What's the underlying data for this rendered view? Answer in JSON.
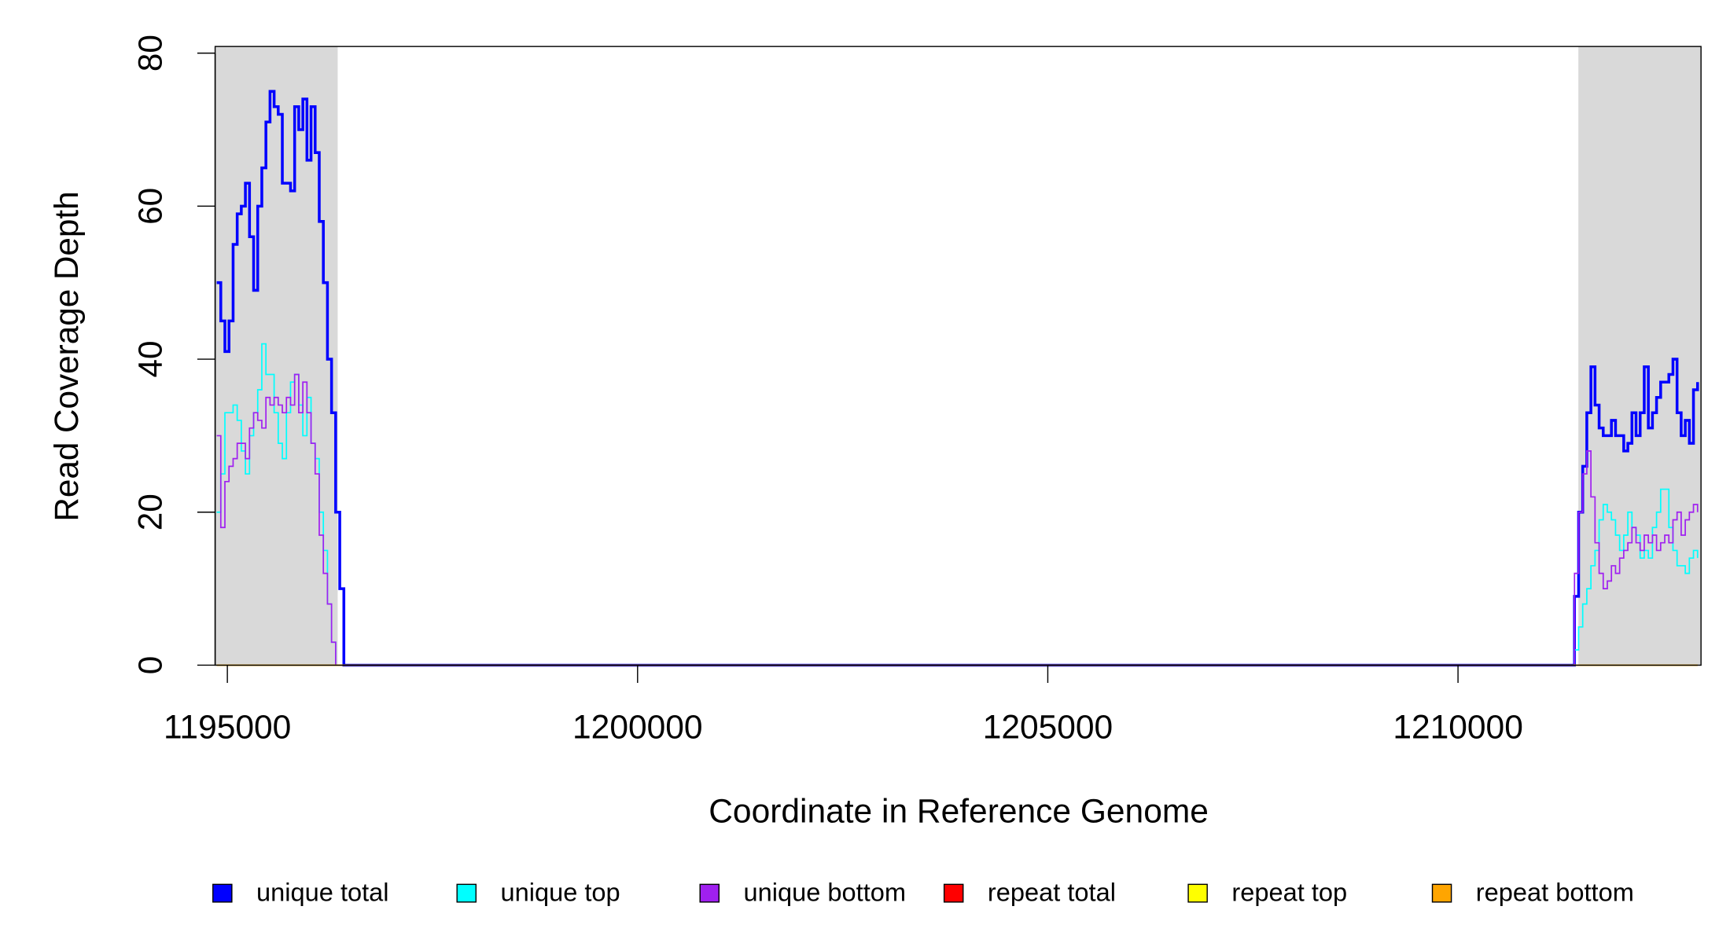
{
  "chart_data": {
    "type": "step-line",
    "xlabel": "Coordinate in Reference Genome",
    "ylabel": "Read Coverage Depth",
    "xlim": [
      1194851,
      1212962
    ],
    "ylim": [
      0,
      80.87
    ],
    "xticks": [
      1195000,
      1200000,
      1205000,
      1210000
    ],
    "yticks": [
      0,
      20,
      40,
      60,
      80
    ],
    "shaded_regions": [
      [
        1194851,
        1196345
      ],
      [
        1211467,
        1212962
      ]
    ],
    "shade_color": "#d9d9d9",
    "x": [
      1194870,
      1194920,
      1194970,
      1195020,
      1195070,
      1195120,
      1195170,
      1195220,
      1195270,
      1195320,
      1195370,
      1195420,
      1195470,
      1195520,
      1195570,
      1195620,
      1195670,
      1195720,
      1195770,
      1195820,
      1195870,
      1195920,
      1195970,
      1196020,
      1196070,
      1196120,
      1196170,
      1196220,
      1196270,
      1196320,
      1196370,
      1196420,
      1211370,
      1211420,
      1211470,
      1211520,
      1211570,
      1211620,
      1211670,
      1211720,
      1211770,
      1211820,
      1211870,
      1211920,
      1211970,
      1212020,
      1212070,
      1212120,
      1212170,
      1212220,
      1212270,
      1212320,
      1212370,
      1212420,
      1212470,
      1212520,
      1212570,
      1212620,
      1212670,
      1212720,
      1212770,
      1212820,
      1212870,
      1212920
    ],
    "series": [
      {
        "name": "unique total",
        "color": "#0000ff",
        "width": 2.5,
        "values": [
          50,
          45,
          41,
          45,
          55,
          59,
          60,
          63,
          56,
          49,
          60,
          65,
          71,
          75,
          73,
          72,
          63,
          63,
          62,
          73,
          70,
          74,
          66,
          73,
          67,
          58,
          50,
          40,
          33,
          20,
          10,
          0,
          0,
          9,
          20,
          26,
          33,
          39,
          34,
          31,
          30,
          30,
          32,
          30,
          30,
          28,
          29,
          33,
          30,
          33,
          39,
          31,
          33,
          35,
          37,
          37,
          38,
          40,
          33,
          30,
          32,
          29,
          36,
          37
        ]
      },
      {
        "name": "unique top",
        "color": "#00ffff",
        "width": 1.2,
        "values": [
          20,
          25,
          33,
          33,
          34,
          32,
          28,
          25,
          30,
          33,
          36,
          42,
          38,
          38,
          33,
          29,
          27,
          33,
          37,
          38,
          34,
          30,
          35,
          29,
          27,
          20,
          15,
          8,
          3,
          0,
          0,
          0,
          0,
          2,
          5,
          8,
          10,
          13,
          15,
          19,
          21,
          20,
          19,
          17,
          15,
          17,
          20,
          18,
          17,
          14,
          15,
          14,
          18,
          20,
          23,
          23,
          18,
          15,
          13,
          13,
          12,
          14,
          15,
          14
        ]
      },
      {
        "name": "unique bottom",
        "color": "#a020f0",
        "width": 1.2,
        "values": [
          30,
          18,
          24,
          26,
          27,
          29,
          29,
          27,
          31,
          33,
          32,
          31,
          35,
          34,
          35,
          34,
          33,
          35,
          34,
          38,
          33,
          37,
          33,
          29,
          25,
          17,
          12,
          8,
          3,
          0,
          0,
          0,
          0,
          12,
          20,
          25,
          28,
          22,
          16,
          12,
          10,
          11,
          13,
          12,
          14,
          15,
          16,
          18,
          16,
          15,
          17,
          16,
          17,
          15,
          16,
          17,
          16,
          19,
          20,
          17,
          19,
          20,
          21,
          20
        ]
      },
      {
        "name": "repeat total",
        "color": "#ff0000",
        "width": 1.2,
        "values": [
          0,
          0,
          0,
          0,
          0,
          0,
          0,
          0,
          0,
          0,
          0,
          0,
          0,
          0,
          0,
          0,
          0,
          0,
          0,
          0,
          0,
          0,
          0,
          0,
          0,
          0,
          0,
          0,
          0,
          0,
          0,
          0,
          0,
          0,
          0,
          0,
          0,
          0,
          0,
          0,
          0,
          0,
          0,
          0,
          0,
          0,
          0,
          0,
          0,
          0,
          0,
          0,
          0,
          0,
          0,
          0,
          0,
          0,
          0,
          0,
          0,
          0,
          0,
          0
        ]
      },
      {
        "name": "repeat top",
        "color": "#ffff00",
        "width": 1.2,
        "values": [
          0,
          0,
          0,
          0,
          0,
          0,
          0,
          0,
          0,
          0,
          0,
          0,
          0,
          0,
          0,
          0,
          0,
          0,
          0,
          0,
          0,
          0,
          0,
          0,
          0,
          0,
          0,
          0,
          0,
          0,
          0,
          0,
          0,
          0,
          0,
          0,
          0,
          0,
          0,
          0,
          0,
          0,
          0,
          0,
          0,
          0,
          0,
          0,
          0,
          0,
          0,
          0,
          0,
          0,
          0,
          0,
          0,
          0,
          0,
          0,
          0,
          0,
          0,
          0
        ]
      },
      {
        "name": "repeat bottom",
        "color": "#ffa500",
        "width": 1.2,
        "values": [
          0,
          0,
          0,
          0,
          0,
          0,
          0,
          0,
          0,
          0,
          0,
          0,
          0,
          0,
          0,
          0,
          0,
          0,
          0,
          0,
          0,
          0,
          0,
          0,
          0,
          0,
          0,
          0,
          0,
          0,
          0,
          0,
          0,
          0,
          0,
          0,
          0,
          0,
          0,
          0,
          0,
          0,
          0,
          0,
          0,
          0,
          0,
          0,
          0,
          0,
          0,
          0,
          0,
          0,
          0,
          0,
          0,
          0,
          0,
          0,
          0,
          0,
          0,
          0
        ]
      }
    ]
  }
}
